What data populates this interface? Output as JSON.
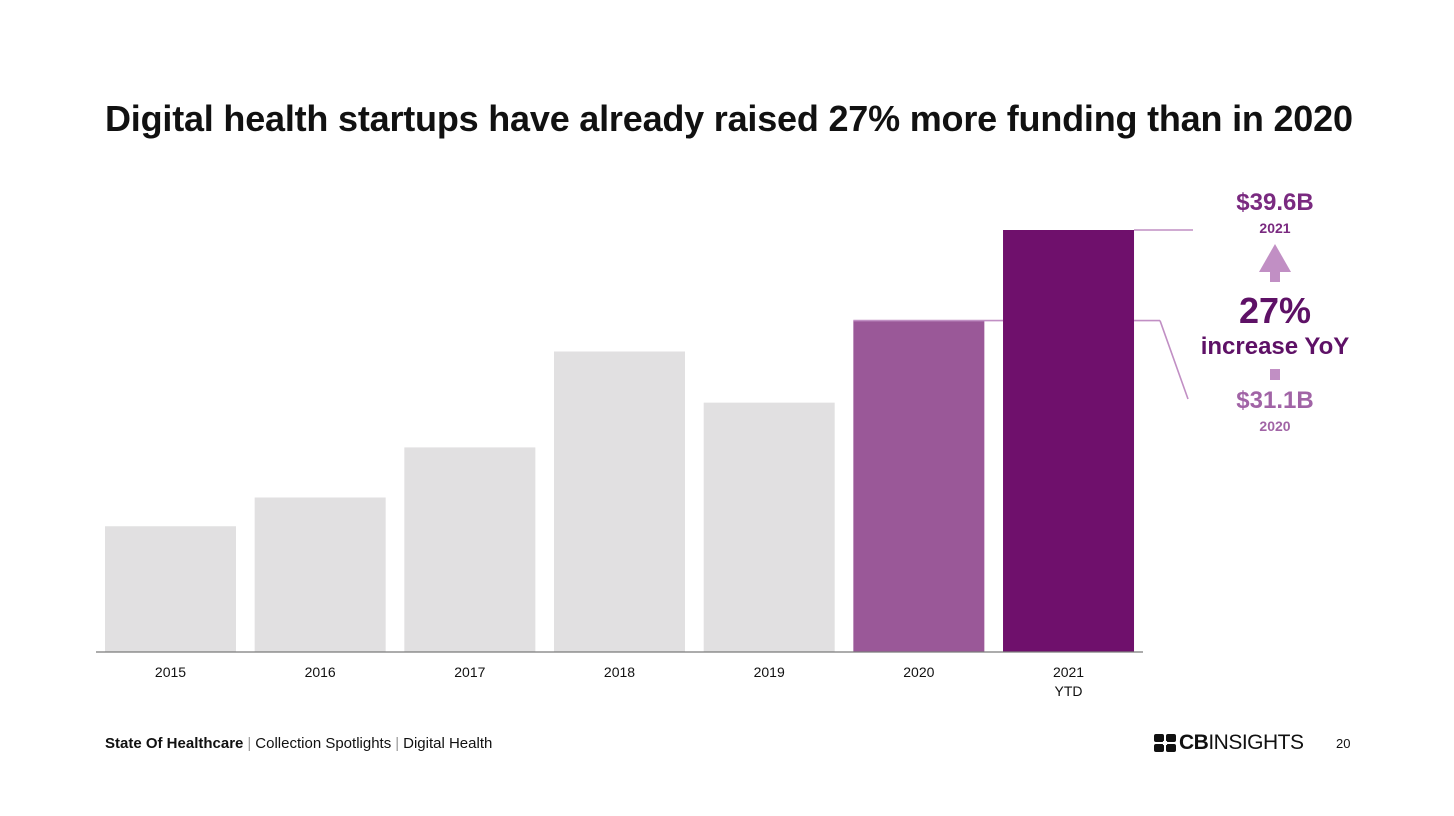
{
  "title": "Digital health startups have already raised 27% more funding than in 2020",
  "chart_data": {
    "type": "bar",
    "categories": [
      "2015",
      "2016",
      "2017",
      "2018",
      "2019",
      "2020",
      "2021\nYTD"
    ],
    "values": [
      11.8,
      14.5,
      19.2,
      28.2,
      23.4,
      31.1,
      39.6
    ],
    "colors": [
      "#e1e0e1",
      "#e1e0e1",
      "#e1e0e1",
      "#e1e0e1",
      "#e1e0e1",
      "#9a5898",
      "#6f106c"
    ],
    "ylim": [
      0,
      39.6
    ],
    "grid": false,
    "xlabel": "",
    "ylabel": "",
    "annotations": {
      "value_2021": "$39.6B",
      "year_2021": "2021",
      "percent": "27%",
      "increase_label": "increase YoY",
      "value_2020": "$31.1B",
      "year_2020": "2020"
    }
  },
  "footer": {
    "report": "State Of Healthcare",
    "section": "Collection Spotlights",
    "topic": "Digital Health",
    "logo_cb": "CB",
    "logo_insights": "INSIGHTS",
    "page_number": "20"
  },
  "colors": {
    "accent_dark": "#6f106c",
    "accent_mid": "#9a5898",
    "accent_light": "#c9a3cd",
    "bar_gray": "#e1e0e1"
  }
}
